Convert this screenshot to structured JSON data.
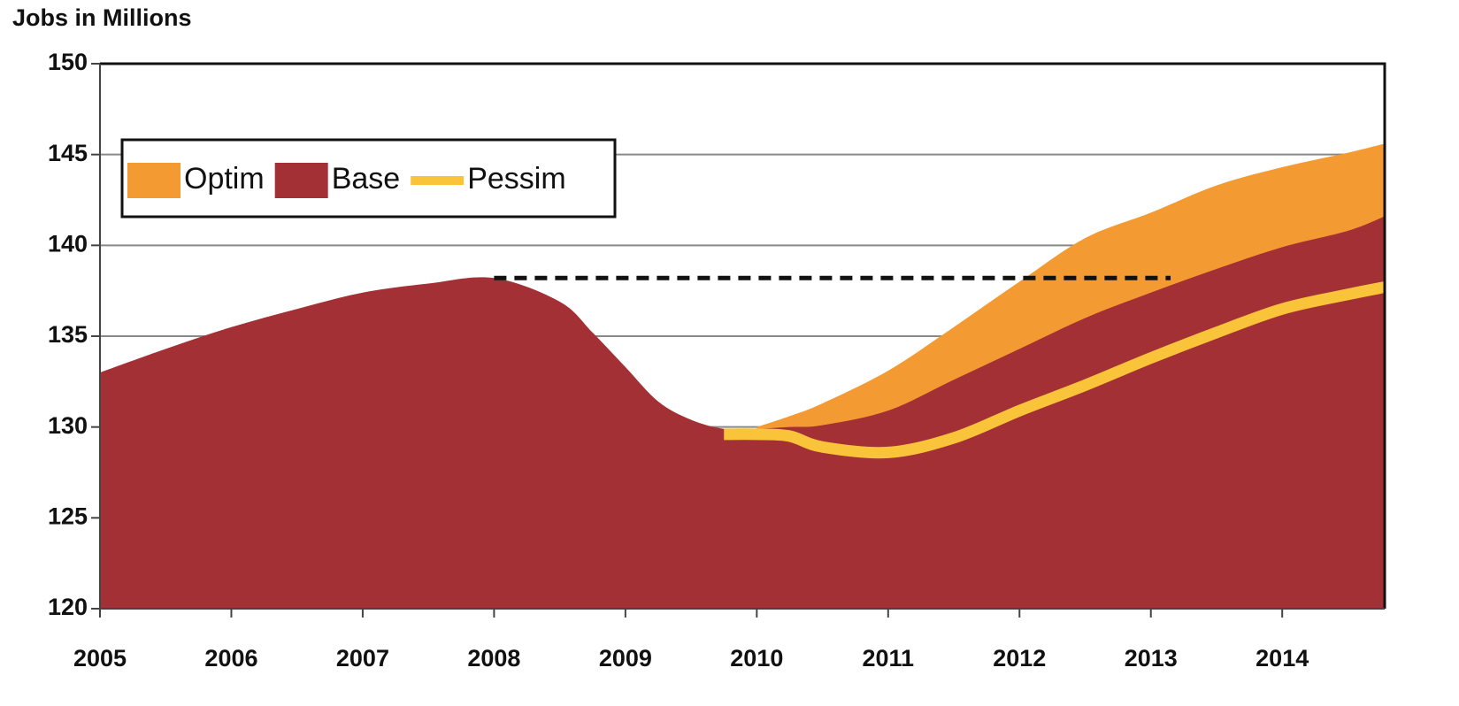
{
  "chart_data": {
    "type": "area",
    "title": "Jobs in Millions",
    "x": [
      2005,
      2005.5,
      2006,
      2006.5,
      2007,
      2007.5,
      2008,
      2008.5,
      2008.75,
      2009,
      2009.25,
      2009.5,
      2009.75,
      2010,
      2010.25,
      2010.5,
      2011,
      2011.5,
      2012,
      2012.5,
      2013,
      2013.5,
      2014,
      2014.5,
      2014.78
    ],
    "series": [
      {
        "name": "Optim",
        "color": "#f39a33",
        "kind": "area",
        "values": [
          null,
          null,
          null,
          null,
          null,
          null,
          null,
          null,
          null,
          null,
          null,
          null,
          null,
          130,
          130.6,
          131.3,
          133.1,
          135.5,
          138,
          140.4,
          141.8,
          143.3,
          144.3,
          145.1,
          145.6
        ]
      },
      {
        "name": "Base",
        "color": "#a33034",
        "kind": "area",
        "values": [
          133,
          134.3,
          135.5,
          136.5,
          137.4,
          137.9,
          138.2,
          136.9,
          135.2,
          133.3,
          131.4,
          130.4,
          129.9,
          129.9,
          130,
          130.1,
          130.9,
          132.6,
          134.3,
          136,
          137.4,
          138.7,
          139.9,
          140.8,
          141.6
        ]
      },
      {
        "name": "Pessim",
        "color": "#f9c33a",
        "kind": "line",
        "values": [
          null,
          null,
          null,
          null,
          null,
          null,
          null,
          null,
          null,
          null,
          null,
          null,
          129.6,
          129.6,
          129.5,
          128.9,
          128.6,
          129.4,
          130.9,
          132.3,
          133.8,
          135.2,
          136.5,
          137.3,
          137.7
        ]
      }
    ],
    "reference_line": {
      "y": 138.2,
      "x": [
        2008,
        2013.15
      ]
    },
    "xlim": [
      2005,
      2014.78
    ],
    "xticks": [
      2005,
      2006,
      2007,
      2008,
      2009,
      2010,
      2011,
      2012,
      2013,
      2014
    ],
    "ylim": [
      120,
      150
    ],
    "yticks": [
      120,
      125,
      130,
      135,
      140,
      145,
      150
    ],
    "grid": true,
    "legend": "upper left"
  }
}
